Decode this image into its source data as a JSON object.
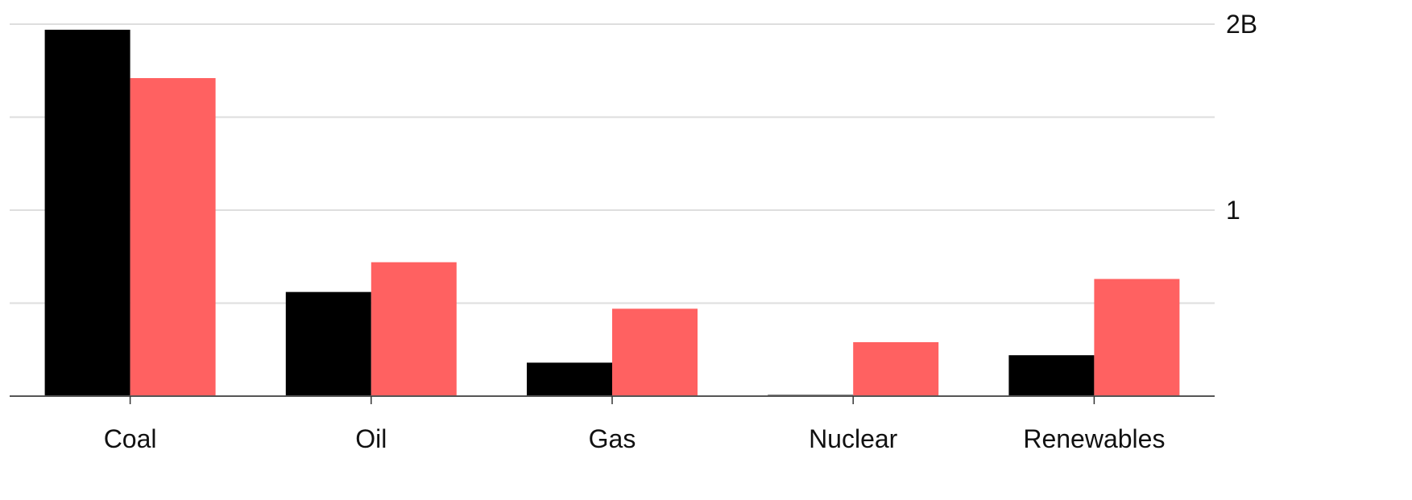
{
  "chart_data": {
    "type": "bar",
    "title": "",
    "xlabel": "",
    "ylabel": "",
    "categories": [
      "Coal",
      "Oil",
      "Gas",
      "Nuclear",
      "Renewables"
    ],
    "series": [
      {
        "color": "#000000",
        "values": [
          1.97,
          0.56,
          0.18,
          0.005,
          0.22
        ]
      },
      {
        "color": "#ff6161",
        "values": [
          1.71,
          0.72,
          0.47,
          0.29,
          0.63
        ]
      }
    ],
    "ylim": [
      0,
      2.0
    ],
    "y_gridlines": [
      0,
      0.5,
      1.0,
      1.5,
      2.0
    ],
    "y_tick_labels": [
      {
        "value": 1.0,
        "label": "1"
      },
      {
        "value": 2.0,
        "label": "2B"
      }
    ],
    "y_axis_side": "right",
    "grid": true,
    "legend": "none"
  }
}
